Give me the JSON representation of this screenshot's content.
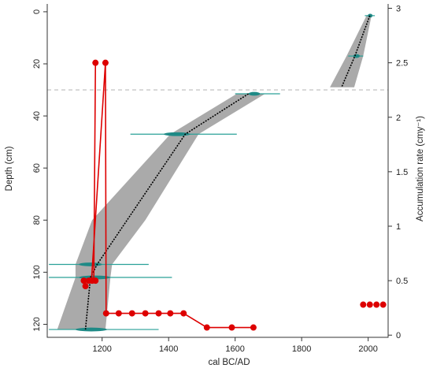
{
  "chart_data": {
    "type": "line",
    "xlabel": "cal BC/AD",
    "ylabel_left": "Depth (cm)",
    "ylabel_right": "Accumulation rate (cmy⁻¹)",
    "x_ticks": [
      1200,
      1400,
      1600,
      1800,
      2000
    ],
    "x_range": [
      1035,
      2060
    ],
    "depth_ticks": [
      0,
      20,
      40,
      60,
      80,
      100,
      120
    ],
    "depth_range": [
      -3,
      125
    ],
    "rate_ticks": [
      0,
      0.5,
      1,
      1.5,
      2,
      2.5,
      3
    ],
    "rate_range": [
      -0.02,
      3.04
    ],
    "hiatus_depth": 30,
    "colors": {
      "envelope": "#aaaaaa",
      "median": "#000000",
      "dates": "#2aa198",
      "rate": "#dd0000",
      "hiatus": "#bbbbbb"
    },
    "age_depth_median": [
      {
        "depth": 1.5,
        "year": 2005
      },
      {
        "depth": 17,
        "year": 1960
      },
      {
        "depth": 29,
        "year": 1920
      },
      {
        "depth": 31.5,
        "year": 1640
      },
      {
        "depth": 47,
        "year": 1450
      },
      {
        "depth": 97,
        "year": 1185
      },
      {
        "depth": 102,
        "year": 1165
      },
      {
        "depth": 122,
        "year": 1150
      }
    ],
    "envelope_upper": [
      {
        "depth": 1.5,
        "year": 2010
      },
      {
        "depth": 17,
        "year": 1985
      },
      {
        "depth": 29,
        "year": 1958
      },
      {
        "depth": 31.5,
        "year": 1690
      },
      {
        "depth": 47,
        "year": 1490
      },
      {
        "depth": 80,
        "year": 1330
      },
      {
        "depth": 97,
        "year": 1230
      },
      {
        "depth": 102,
        "year": 1225
      },
      {
        "depth": 122,
        "year": 1210
      }
    ],
    "envelope_lower": [
      {
        "depth": 1.5,
        "year": 1995
      },
      {
        "depth": 17,
        "year": 1935
      },
      {
        "depth": 29,
        "year": 1885
      },
      {
        "depth": 31.5,
        "year": 1605
      },
      {
        "depth": 47,
        "year": 1405
      },
      {
        "depth": 80,
        "year": 1170
      },
      {
        "depth": 97,
        "year": 1120
      },
      {
        "depth": 102,
        "year": 1120
      },
      {
        "depth": 122,
        "year": 1065
      }
    ],
    "dates": [
      {
        "depth": 1.5,
        "x_min": 1990,
        "x_max": 2020,
        "core_min": 2000,
        "core_max": 2012
      },
      {
        "depth": 17,
        "x_min": 1940,
        "x_max": 1985,
        "core_min": 1955,
        "core_max": 1975
      },
      {
        "depth": 31.5,
        "x_min": 1600,
        "x_max": 1735,
        "core_min": 1640,
        "core_max": 1675
      },
      {
        "depth": 47,
        "x_min": 1285,
        "x_max": 1605,
        "core_min": 1385,
        "core_max": 1465
      },
      {
        "depth": 97,
        "x_min": 1040,
        "x_max": 1340,
        "core_min": 1130,
        "core_max": 1200
      },
      {
        "depth": 102,
        "x_min": 1040,
        "x_max": 1410,
        "core_min": 1130,
        "core_max": 1225
      },
      {
        "depth": 122,
        "x_min": 1040,
        "x_max": 1370,
        "core_min": 1120,
        "core_max": 1215
      }
    ],
    "accumulation_rate": [
      {
        "year": 1180,
        "rate": 2.5
      },
      {
        "year": 1180,
        "rate": 0.5
      },
      {
        "year": 1170,
        "rate": 0.5
      },
      {
        "year": 1160,
        "rate": 0.5
      },
      {
        "year": 1150,
        "rate": 0.45
      },
      {
        "year": 1145,
        "rate": 0.5
      },
      {
        "year": 1210,
        "rate": 2.5
      },
      {
        "year": 1212,
        "rate": 0.2
      },
      {
        "year": 1250,
        "rate": 0.2
      },
      {
        "year": 1290,
        "rate": 0.2
      },
      {
        "year": 1330,
        "rate": 0.2
      },
      {
        "year": 1370,
        "rate": 0.2
      },
      {
        "year": 1405,
        "rate": 0.2
      },
      {
        "year": 1445,
        "rate": 0.2
      },
      {
        "year": 1515,
        "rate": 0.07
      },
      {
        "year": 1590,
        "rate": 0.07
      },
      {
        "year": 1655,
        "rate": 0.07
      },
      {
        "year": 1985,
        "rate": 0.28
      },
      {
        "year": 2005,
        "rate": 0.28
      },
      {
        "year": 2025,
        "rate": 0.28
      },
      {
        "year": 2045,
        "rate": 0.28
      }
    ],
    "rate_line": [
      {
        "year": 1180,
        "rate": 2.5
      },
      {
        "year": 1175,
        "rate": 0.5
      },
      {
        "year": 1168,
        "rate": 0.5
      },
      {
        "year": 1210,
        "rate": 2.5
      },
      {
        "year": 1212,
        "rate": 0.2
      },
      {
        "year": 1445,
        "rate": 0.2
      },
      {
        "year": 1515,
        "rate": 0.07
      },
      {
        "year": 1655,
        "rate": 0.07
      }
    ]
  }
}
